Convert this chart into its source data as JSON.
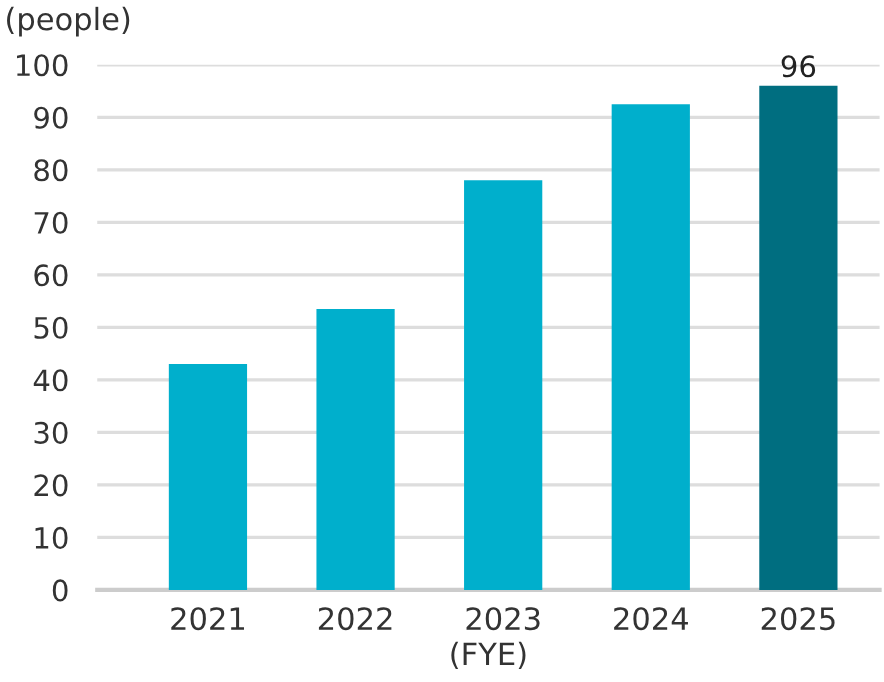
{
  "chart_data": {
    "type": "bar",
    "ylabel": "(people)",
    "xlabel": "(FYE)",
    "categories": [
      "2021",
      "2022",
      "2023",
      "2024",
      "2025"
    ],
    "values": [
      43,
      53.5,
      78,
      92.5,
      96
    ],
    "colors": [
      "#00afcc",
      "#00afcc",
      "#00afcc",
      "#00afcc",
      "#006e80"
    ],
    "value_labels": [
      null,
      null,
      null,
      null,
      "96"
    ],
    "ylim": [
      0,
      100
    ],
    "yticks": [
      0,
      10,
      20,
      30,
      40,
      50,
      60,
      70,
      80,
      90,
      100
    ],
    "grid": "y"
  }
}
